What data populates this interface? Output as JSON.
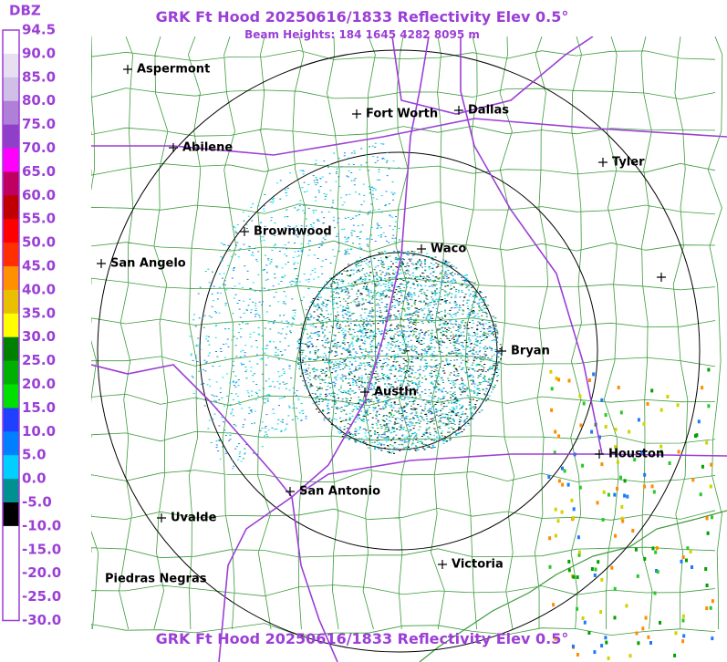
{
  "header": {
    "title": "GRK Ft Hood 20250616/1833 Reflectivity Elev 0.5°",
    "subtitle": "Beam Heights: 184 1645 4282 8095 m"
  },
  "footer": {
    "title": "GRK Ft Hood 20250616/1833 Reflectivity Elev 0.5°"
  },
  "legend": {
    "title": "DBZ",
    "labels": [
      "94.5",
      "90.0",
      "85.0",
      "80.0",
      "75.0",
      "70.0",
      "65.0",
      "60.0",
      "55.0",
      "50.0",
      "45.0",
      "40.0",
      "35.0",
      "30.0",
      "25.0",
      "20.0",
      "15.0",
      "10.0",
      "5.0",
      "0.0",
      "-5.0",
      "-10.0",
      "-15.0",
      "-20.0",
      "-25.0",
      "-30.0"
    ]
  },
  "map": {
    "cities": [
      "Aspermont",
      "Fort Worth",
      "Dallas",
      "Abilene",
      "Tyler",
      "Brownwood",
      "Waco",
      "San Angelo",
      "Bryan",
      "Austin",
      "Houston",
      "San Antonio",
      "Uvalde",
      "Victoria",
      "Piedras Negras"
    ]
  }
}
